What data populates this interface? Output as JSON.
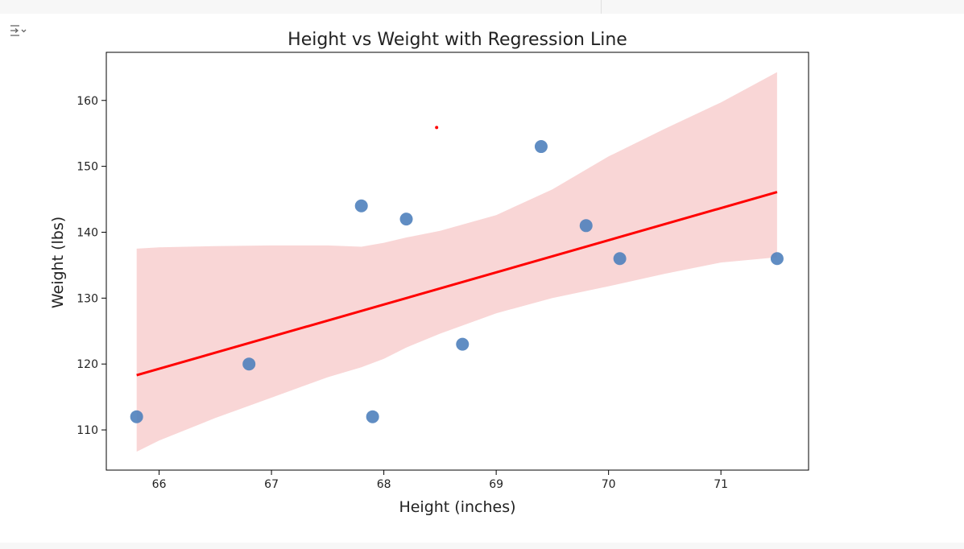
{
  "toolbar": {
    "output_toggle_icon": "output-collapse-icon"
  },
  "colors": {
    "points": "#4f81bd",
    "regression_line": "#ff0000",
    "confidence_band": "#f4b4b4",
    "background": "#ffffff"
  },
  "chart_data": {
    "type": "scatter",
    "title": "Height vs Weight with Regression Line",
    "xlabel": "Height (inches)",
    "ylabel": "Weight (lbs)",
    "xlim": [
      65.53,
      71.78
    ],
    "ylim": [
      103.9,
      167.3
    ],
    "xticks": [
      66,
      67,
      68,
      69,
      70,
      71
    ],
    "yticks": [
      110,
      120,
      130,
      140,
      150,
      160
    ],
    "grid": false,
    "points": [
      {
        "x": 65.8,
        "y": 112
      },
      {
        "x": 66.8,
        "y": 120
      },
      {
        "x": 67.8,
        "y": 144
      },
      {
        "x": 67.9,
        "y": 112
      },
      {
        "x": 68.2,
        "y": 142
      },
      {
        "x": 68.7,
        "y": 123
      },
      {
        "x": 69.4,
        "y": 153
      },
      {
        "x": 69.8,
        "y": 141
      },
      {
        "x": 70.1,
        "y": 136
      },
      {
        "x": 71.5,
        "y": 136
      }
    ],
    "regression": {
      "x": [
        65.8,
        71.5
      ],
      "y": [
        118.3,
        146.1
      ]
    },
    "confidence_band": {
      "x": [
        65.8,
        66.0,
        66.5,
        67.0,
        67.5,
        67.8,
        68.0,
        68.2,
        68.5,
        69.0,
        69.5,
        70.0,
        70.5,
        71.0,
        71.5
      ],
      "upper": [
        137.5,
        137.7,
        137.9,
        138.0,
        138.0,
        137.8,
        138.4,
        139.2,
        140.2,
        142.6,
        146.5,
        151.5,
        155.7,
        159.7,
        164.3
      ],
      "lower": [
        106.7,
        108.4,
        111.8,
        114.9,
        118.0,
        119.5,
        120.8,
        122.5,
        124.6,
        127.7,
        130.0,
        131.8,
        133.7,
        135.4,
        136.2
      ]
    },
    "annotation_point": {
      "x": 68.47,
      "y": 155.9
    }
  }
}
